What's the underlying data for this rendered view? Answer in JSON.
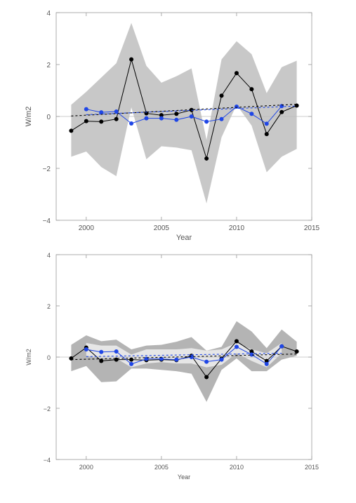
{
  "chart_data": [
    {
      "type": "line",
      "xlabel": "Year",
      "ylabel": "W/m2",
      "xlim": [
        1998,
        2015
      ],
      "ylim": [
        -4,
        4
      ],
      "xticks": [
        2000,
        2005,
        2010,
        2015
      ],
      "yticks": [
        -4,
        -2,
        0,
        2,
        4
      ],
      "colors": {
        "band": "#c8c8c8",
        "series_black": "#000000",
        "series_blue": "#1f46e6"
      },
      "envelopes": [
        {
          "x": [
            1999,
            2000,
            2001,
            2002,
            2003,
            2004,
            2005,
            2006,
            2007,
            2008,
            2009,
            2010,
            2011,
            2012,
            2013,
            2014
          ],
          "upper": [
            0.45,
            0.95,
            1.5,
            2.05,
            3.6,
            1.95,
            1.3,
            1.55,
            1.85,
            -0.9,
            2.2,
            2.9,
            2.4,
            0.9,
            1.9,
            2.15
          ],
          "lower": [
            -1.55,
            -1.35,
            -1.95,
            -2.3,
            0.35,
            -1.65,
            -1.15,
            -1.2,
            -1.3,
            -3.35,
            -0.8,
            0.45,
            -0.35,
            -2.15,
            -1.55,
            -1.25
          ]
        }
      ],
      "series": [
        {
          "x": [
            1999,
            2000,
            2001,
            2002,
            2003,
            2004,
            2005,
            2006,
            2007,
            2008,
            2009,
            2010,
            2011,
            2012,
            2013,
            2014
          ],
          "values": [
            -0.55,
            -0.18,
            -0.2,
            -0.1,
            2.2,
            0.12,
            0.05,
            0.1,
            0.25,
            -1.62,
            0.8,
            1.67,
            1.05,
            -0.68,
            0.17,
            0.42
          ],
          "color": "black",
          "marker": "circle"
        },
        {
          "x": [
            2000,
            2001,
            2002,
            2003,
            2004,
            2005,
            2006,
            2007,
            2008,
            2009,
            2010,
            2011,
            2012,
            2013
          ],
          "values": [
            0.28,
            0.16,
            0.19,
            -0.27,
            -0.07,
            -0.07,
            -0.13,
            0.0,
            -0.2,
            -0.1,
            0.38,
            0.1,
            -0.28,
            0.4
          ],
          "color": "blue",
          "marker": "circle"
        },
        {
          "x": [
            1999,
            2014
          ],
          "values": [
            0.02,
            0.47
          ],
          "color": "black",
          "style": "dashed"
        },
        {
          "x": [
            2000,
            2014
          ],
          "values": [
            0.07,
            0.4
          ],
          "color": "blue",
          "style": "dashed"
        }
      ]
    },
    {
      "type": "line",
      "xlabel": "Year",
      "ylabel": "W/m2",
      "xlim": [
        1998,
        2015
      ],
      "ylim": [
        -4,
        4
      ],
      "xticks": [
        2000,
        2005,
        2010,
        2015
      ],
      "yticks": [
        -4,
        -2,
        0,
        2,
        4
      ],
      "colors": {
        "band_outer": "#b4b4b4",
        "band_inner": "#e6e6e6",
        "series_black": "#000000",
        "series_blue": "#1f46e6"
      },
      "envelopes": [
        {
          "x": [
            1999,
            2000,
            2001,
            2002,
            2003,
            2004,
            2005,
            2006,
            2007,
            2008,
            2009,
            2010,
            2011,
            2012,
            2013,
            2014
          ],
          "upper": [
            0.48,
            0.85,
            0.62,
            0.68,
            0.3,
            0.45,
            0.48,
            0.6,
            0.78,
            0.25,
            0.4,
            1.4,
            1.0,
            0.35,
            1.08,
            0.6
          ],
          "lower": [
            -0.55,
            -0.35,
            -0.98,
            -0.95,
            -0.45,
            -0.45,
            -0.5,
            -0.55,
            -0.65,
            -1.75,
            -0.5,
            -0.05,
            -0.55,
            -0.55,
            -0.1,
            0.05
          ]
        },
        {
          "x": [
            2000,
            2001,
            2002,
            2003,
            2004,
            2005,
            2006,
            2007,
            2008,
            2009,
            2010,
            2011,
            2012,
            2013
          ],
          "upper": [
            0.55,
            0.45,
            0.45,
            0.1,
            0.3,
            0.3,
            0.3,
            0.35,
            0.25,
            0.3,
            0.55,
            0.3,
            0.15,
            0.55
          ],
          "lower": [
            0.05,
            -0.05,
            -0.05,
            -0.4,
            -0.25,
            -0.2,
            -0.25,
            -0.25,
            -0.4,
            -0.3,
            0.15,
            -0.15,
            -0.4,
            0.15
          ]
        }
      ],
      "series": [
        {
          "x": [
            1999,
            2000,
            2001,
            2002,
            2003,
            2004,
            2005,
            2006,
            2007,
            2008,
            2009,
            2010,
            2011,
            2012,
            2013,
            2014
          ],
          "values": [
            -0.05,
            0.37,
            -0.15,
            -0.1,
            -0.1,
            -0.12,
            -0.1,
            -0.12,
            0.05,
            -0.78,
            -0.06,
            0.62,
            0.22,
            -0.15,
            0.42,
            0.22
          ],
          "color": "black",
          "marker": "circle"
        },
        {
          "x": [
            2000,
            2001,
            2002,
            2003,
            2004,
            2005,
            2006,
            2007,
            2008,
            2009,
            2010,
            2011,
            2012,
            2013
          ],
          "values": [
            0.3,
            0.2,
            0.22,
            -0.27,
            -0.07,
            -0.07,
            -0.1,
            0.0,
            -0.18,
            -0.1,
            0.4,
            0.1,
            -0.27,
            0.42
          ],
          "color": "blue",
          "marker": "circle"
        },
        {
          "x": [
            1999,
            2014
          ],
          "values": [
            -0.1,
            0.12
          ],
          "color": "black",
          "style": "dashed"
        },
        {
          "x": [
            2000,
            2013
          ],
          "values": [
            0.02,
            0.15
          ],
          "color": "blue",
          "style": "dashed"
        }
      ]
    }
  ]
}
